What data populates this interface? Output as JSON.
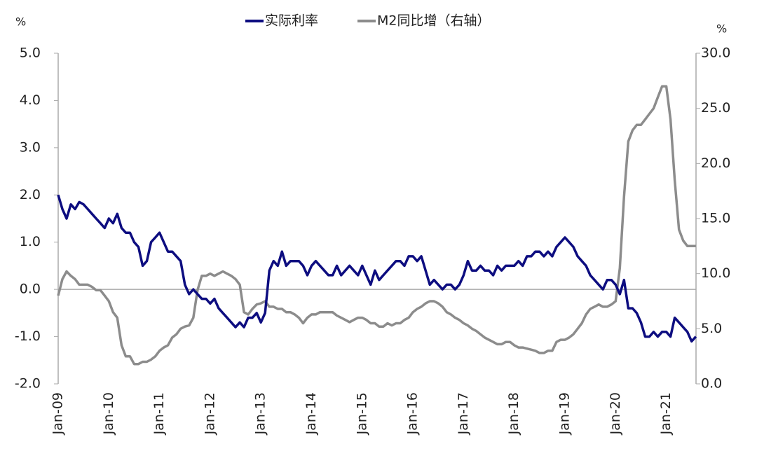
{
  "chart_data": {
    "type": "line",
    "legend_position": "top",
    "y_label": "%",
    "y2_label": "%",
    "categories": [
      "Jan-09",
      null,
      null,
      null,
      null,
      null,
      null,
      null,
      null,
      null,
      null,
      null,
      "Jan-10",
      null,
      null,
      null,
      null,
      null,
      null,
      null,
      null,
      null,
      null,
      null,
      "Jan-11",
      null,
      null,
      null,
      null,
      null,
      null,
      null,
      null,
      null,
      null,
      null,
      "Jan-12",
      null,
      null,
      null,
      null,
      null,
      null,
      null,
      null,
      null,
      null,
      null,
      "Jan-13",
      null,
      null,
      null,
      null,
      null,
      null,
      null,
      null,
      null,
      null,
      null,
      "Jan-14",
      null,
      null,
      null,
      null,
      null,
      null,
      null,
      null,
      null,
      null,
      null,
      "Jan-15",
      null,
      null,
      null,
      null,
      null,
      null,
      null,
      null,
      null,
      null,
      null,
      "Jan-16",
      null,
      null,
      null,
      null,
      null,
      null,
      null,
      null,
      null,
      null,
      null,
      "Jan-17",
      null,
      null,
      null,
      null,
      null,
      null,
      null,
      null,
      null,
      null,
      null,
      "Jan-18",
      null,
      null,
      null,
      null,
      null,
      null,
      null,
      null,
      null,
      null,
      null,
      "Jan-19",
      null,
      null,
      null,
      null,
      null,
      null,
      null,
      null,
      null,
      null,
      null,
      "Jan-20",
      null,
      null,
      null,
      null,
      null,
      null,
      null,
      null,
      null,
      null,
      null,
      "Jan-21",
      null,
      null,
      null,
      null,
      null,
      null,
      null
    ],
    "series": [
      {
        "name": "实际利率",
        "color": "#0d0d80",
        "axis": "y",
        "values": [
          2.0,
          1.7,
          1.5,
          1.8,
          1.7,
          1.85,
          1.8,
          1.7,
          1.6,
          1.5,
          1.4,
          1.3,
          1.5,
          1.4,
          1.6,
          1.3,
          1.2,
          1.2,
          1.0,
          0.9,
          0.5,
          0.6,
          1.0,
          1.1,
          1.2,
          1.0,
          0.8,
          0.8,
          0.7,
          0.6,
          0.1,
          -0.1,
          0.0,
          -0.1,
          -0.2,
          -0.2,
          -0.3,
          -0.2,
          -0.4,
          -0.5,
          -0.6,
          -0.7,
          -0.8,
          -0.7,
          -0.8,
          -0.6,
          -0.6,
          -0.5,
          -0.7,
          -0.5,
          0.4,
          0.6,
          0.5,
          0.8,
          0.5,
          0.6,
          0.6,
          0.6,
          0.5,
          0.3,
          0.5,
          0.6,
          0.5,
          0.4,
          0.3,
          0.3,
          0.5,
          0.3,
          0.4,
          0.5,
          0.4,
          0.3,
          0.5,
          0.3,
          0.1,
          0.4,
          0.2,
          0.3,
          0.4,
          0.5,
          0.6,
          0.6,
          0.5,
          0.7,
          0.7,
          0.6,
          0.7,
          0.4,
          0.1,
          0.2,
          0.1,
          0.0,
          0.1,
          0.1,
          0.0,
          0.1,
          0.3,
          0.6,
          0.4,
          0.4,
          0.5,
          0.4,
          0.4,
          0.3,
          0.5,
          0.4,
          0.5,
          0.5,
          0.5,
          0.6,
          0.5,
          0.7,
          0.7,
          0.8,
          0.8,
          0.7,
          0.8,
          0.7,
          0.9,
          1.0,
          1.1,
          1.0,
          0.9,
          0.7,
          0.6,
          0.5,
          0.3,
          0.2,
          0.1,
          0.0,
          0.2,
          0.2,
          0.1,
          -0.1,
          0.2,
          -0.4,
          -0.4,
          -0.5,
          -0.7,
          -1.0,
          -1.0,
          -0.9,
          -1.0,
          -0.9,
          -0.9,
          -1.0,
          -0.6,
          -0.7,
          -0.8,
          -0.9,
          -1.1,
          -1.0
        ]
      },
      {
        "name": "M2同比增（右轴）",
        "color": "#8c8c8c",
        "axis": "y2",
        "values": [
          8.0,
          9.5,
          10.2,
          9.8,
          9.5,
          9.0,
          9.0,
          9.0,
          8.8,
          8.5,
          8.5,
          8.0,
          7.5,
          6.5,
          6.0,
          3.5,
          2.5,
          2.5,
          1.8,
          1.8,
          2.0,
          2.0,
          2.2,
          2.5,
          3.0,
          3.3,
          3.5,
          4.2,
          4.5,
          5.0,
          5.2,
          5.3,
          6.0,
          8.5,
          9.8,
          9.8,
          10.0,
          9.8,
          10.0,
          10.2,
          10.0,
          9.8,
          9.5,
          9.0,
          6.5,
          6.3,
          6.8,
          7.2,
          7.3,
          7.5,
          7.0,
          7.0,
          6.8,
          6.8,
          6.5,
          6.5,
          6.3,
          6.0,
          5.5,
          6.0,
          6.3,
          6.3,
          6.5,
          6.5,
          6.5,
          6.5,
          6.2,
          6.0,
          5.8,
          5.6,
          5.8,
          6.0,
          6.0,
          5.8,
          5.5,
          5.5,
          5.2,
          5.2,
          5.5,
          5.3,
          5.5,
          5.5,
          5.8,
          6.0,
          6.5,
          6.8,
          7.0,
          7.3,
          7.5,
          7.5,
          7.3,
          7.0,
          6.5,
          6.3,
          6.0,
          5.8,
          5.5,
          5.3,
          5.0,
          4.8,
          4.5,
          4.2,
          4.0,
          3.8,
          3.6,
          3.6,
          3.8,
          3.8,
          3.5,
          3.3,
          3.3,
          3.2,
          3.1,
          3.0,
          2.8,
          2.8,
          3.0,
          3.0,
          3.8,
          4.0,
          4.0,
          4.2,
          4.5,
          5.0,
          5.5,
          6.3,
          6.8,
          7.0,
          7.2,
          7.0,
          7.0,
          7.2,
          7.5,
          10.5,
          17.0,
          22.0,
          23.0,
          23.5,
          23.5,
          24.0,
          24.5,
          25.0,
          26.0,
          27.0,
          27.0,
          24.0,
          18.5,
          14.0,
          13.0,
          12.5,
          12.5,
          12.5
        ]
      }
    ],
    "ylim": [
      -2,
      5
    ],
    "yticks": [
      {
        "value": -2,
        "label": "-2.0"
      },
      {
        "value": -1,
        "label": "-1.0"
      },
      {
        "value": 0,
        "label": "0.0"
      },
      {
        "value": 1,
        "label": "1.0"
      },
      {
        "value": 2,
        "label": "2.0"
      },
      {
        "value": 3,
        "label": "3.0"
      },
      {
        "value": 4,
        "label": "4.0"
      },
      {
        "value": 5,
        "label": "5.0"
      }
    ],
    "y2lim": [
      0,
      30
    ],
    "y2ticks": [
      {
        "value": 0,
        "label": "0.0"
      },
      {
        "value": 5,
        "label": "5.0"
      },
      {
        "value": 10,
        "label": "10.0"
      },
      {
        "value": 15,
        "label": "15.0"
      },
      {
        "value": 20,
        "label": "20.0"
      },
      {
        "value": 25,
        "label": "25.0"
      },
      {
        "value": 30,
        "label": "30.0"
      }
    ]
  }
}
